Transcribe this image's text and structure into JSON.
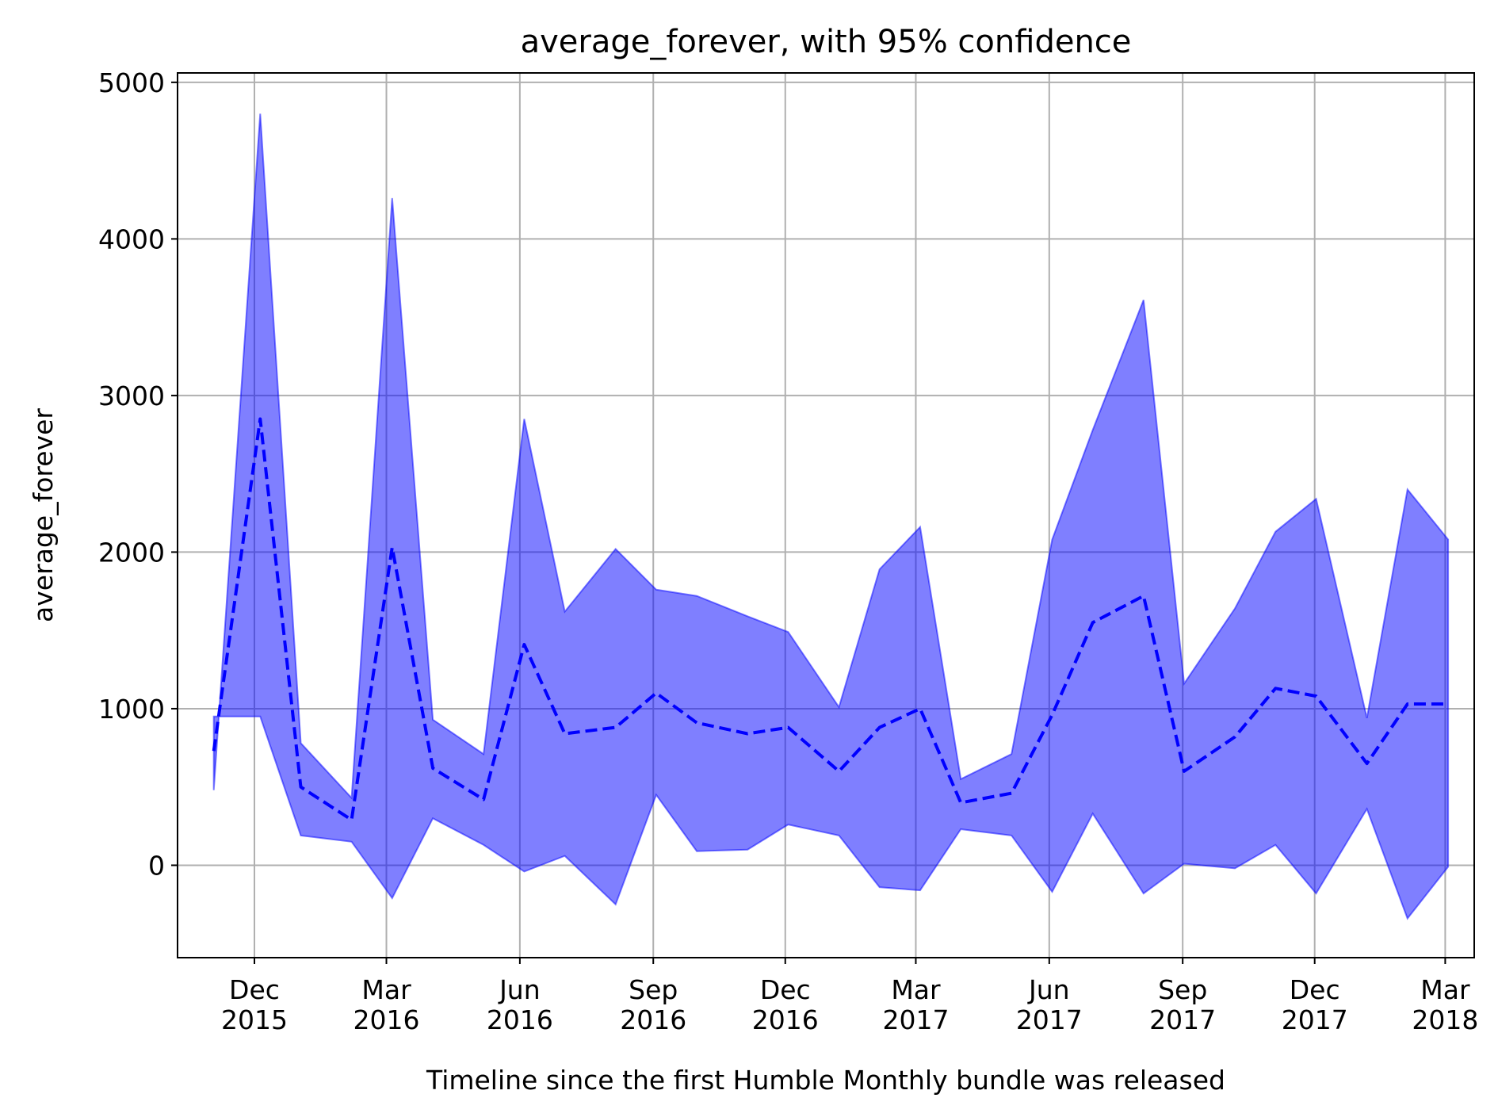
{
  "chart_data": {
    "type": "area",
    "title": "average_forever, with 95% confidence",
    "xlabel": "Timeline since the first Humble Monthly bundle was released",
    "ylabel": "average_forever",
    "ylim": [
      -590,
      5060
    ],
    "xlim": [
      "2015-10-09",
      "2018-03-21"
    ],
    "yticks": [
      0,
      1000,
      2000,
      3000,
      4000,
      5000
    ],
    "xticks": [
      {
        "date": "2015-12-01",
        "label": [
          "Dec",
          "2015"
        ]
      },
      {
        "date": "2016-03-01",
        "label": [
          "Mar",
          "2016"
        ]
      },
      {
        "date": "2016-06-01",
        "label": [
          "Jun",
          "2016"
        ]
      },
      {
        "date": "2016-09-01",
        "label": [
          "Sep",
          "2016"
        ]
      },
      {
        "date": "2016-12-01",
        "label": [
          "Dec",
          "2016"
        ]
      },
      {
        "date": "2017-03-01",
        "label": [
          "Mar",
          "2017"
        ]
      },
      {
        "date": "2017-06-01",
        "label": [
          "Jun",
          "2017"
        ]
      },
      {
        "date": "2017-09-01",
        "label": [
          "Sep",
          "2017"
        ]
      },
      {
        "date": "2017-12-01",
        "label": [
          "Dec",
          "2017"
        ]
      },
      {
        "date": "2018-03-01",
        "label": [
          "Mar",
          "2018"
        ]
      }
    ],
    "grid": true,
    "x": [
      "2015-11-03",
      "2015-12-05",
      "2016-01-02",
      "2016-02-06",
      "2016-03-05",
      "2016-04-02",
      "2016-05-07",
      "2016-06-04",
      "2016-07-02",
      "2016-08-06",
      "2016-09-03",
      "2016-10-01",
      "2016-11-05",
      "2016-12-03",
      "2017-01-07",
      "2017-02-04",
      "2017-03-04",
      "2017-04-01",
      "2017-05-06",
      "2017-06-03",
      "2017-07-01",
      "2017-08-05",
      "2017-09-02",
      "2017-10-07",
      "2017-11-04",
      "2017-12-02",
      "2018-01-06",
      "2018-02-03",
      "2018-03-03"
    ],
    "series": [
      {
        "role": "mean",
        "color": "#0000ff",
        "line_style": "dashed",
        "values": [
          730,
          2850,
          500,
          290,
          2030,
          620,
          420,
          1410,
          840,
          880,
          1100,
          910,
          840,
          880,
          600,
          880,
          1000,
          400,
          460,
          960,
          1550,
          1720,
          600,
          820,
          1130,
          1080,
          650,
          1030,
          1030
        ]
      },
      {
        "role": "confidence-upper",
        "color": "#0000ff",
        "values": [
          480,
          4800,
          780,
          430,
          4260,
          930,
          710,
          2850,
          1620,
          2020,
          1760,
          1720,
          1590,
          1490,
          1010,
          1890,
          2160,
          550,
          710,
          2080,
          2780,
          3610,
          1160,
          1640,
          2130,
          2340,
          940,
          2400,
          2080
        ]
      },
      {
        "role": "confidence-lower",
        "color": "#0000ff",
        "values": [
          950,
          950,
          190,
          150,
          -210,
          300,
          130,
          -40,
          60,
          -250,
          450,
          90,
          100,
          260,
          190,
          -140,
          -160,
          230,
          190,
          -170,
          330,
          -180,
          10,
          -20,
          130,
          -180,
          360,
          -340,
          -10
        ]
      }
    ],
    "fill_color": "#0000ff",
    "fill_opacity": 0.5
  }
}
